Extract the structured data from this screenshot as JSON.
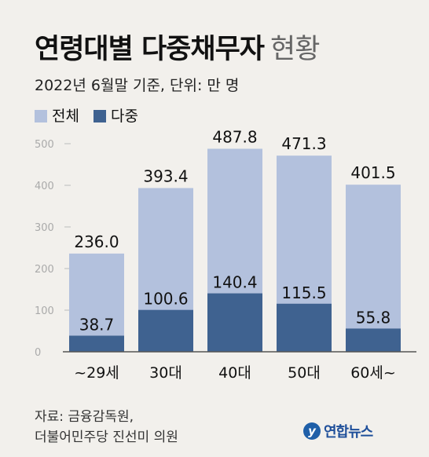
{
  "title_main": "연령대별 다중채무자",
  "title_sub": "현황",
  "subtitle": "2022년 6월말 기준, 단위: 만 명",
  "legend": [
    {
      "label": "전체",
      "color": "#b3c1dd"
    },
    {
      "label": "다중",
      "color": "#3f6290"
    }
  ],
  "source_lines": [
    "자료: 금융감독원,",
    "더불어민주당 진선미 의원"
  ],
  "logo_text": "연합뉴스",
  "chart_data": {
    "type": "bar",
    "categories": [
      "~29세",
      "30대",
      "40대",
      "50대",
      "60세~"
    ],
    "series": [
      {
        "name": "전체",
        "values": [
          236.0,
          393.4,
          487.8,
          471.3,
          401.5
        ],
        "color": "#b3c1dd"
      },
      {
        "name": "다중",
        "values": [
          38.7,
          100.6,
          140.4,
          115.5,
          55.8
        ],
        "color": "#3f6290"
      }
    ],
    "yticks": [
      0,
      100,
      200,
      300,
      400,
      500
    ],
    "ylim": [
      0,
      500
    ],
    "grid": true,
    "legend_position": "top-left"
  }
}
